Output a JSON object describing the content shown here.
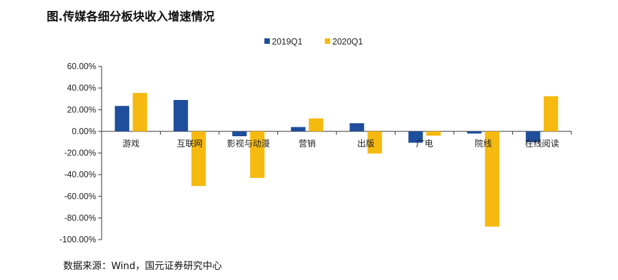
{
  "title": "图.传媒各细分板块收入增速情况",
  "source": "数据来源：Wind，国元证券研究中心",
  "colors": {
    "s1": "#1f4e9c",
    "s2": "#f5b90f",
    "axis": "#333333"
  },
  "chart_data": {
    "type": "bar",
    "categories": [
      "游戏",
      "互联网",
      "影视与动漫",
      "营销",
      "出版",
      "广电",
      "院线",
      "在线阅读"
    ],
    "series": [
      {
        "name": "2019Q1",
        "values": [
          23.5,
          29.0,
          -4.5,
          4.0,
          7.5,
          -10.5,
          -2.0,
          -10.0
        ]
      },
      {
        "name": "2020Q1",
        "values": [
          35.5,
          -50.5,
          -43.0,
          12.0,
          -20.5,
          -4.0,
          -88.0,
          32.5
        ]
      }
    ],
    "ylim": [
      -100,
      60
    ],
    "yticks": [
      "60.00%",
      "40.00%",
      "20.00%",
      "0.00%",
      "-20.00%",
      "-40.00%",
      "-60.00%",
      "-80.00%",
      "-100.00%"
    ],
    "legend": "top-center",
    "grid": false
  }
}
